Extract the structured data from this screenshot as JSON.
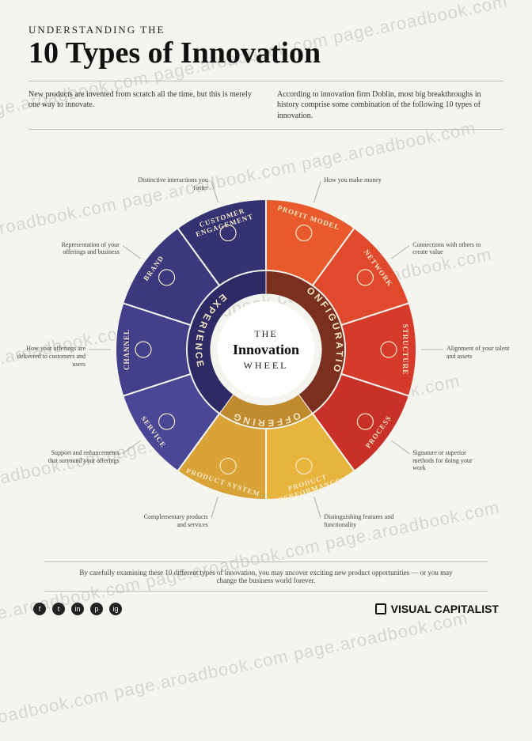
{
  "watermark_text": "page.aroadbook.com  page.aroadbook.com  page.aroadbook.com",
  "watermark_color": "rgba(120,120,120,0.25)",
  "header": {
    "eyebrow": "UNDERSTANDING THE",
    "title": "10 Types of Innovation",
    "intro_left": "New products are invented from scratch all the time, but this is merely one way to innovate.",
    "intro_right": "According to innovation firm Doblin, most big breakthroughs in history comprise some combination of the following 10 types of innovation."
  },
  "wheel": {
    "type": "radial-infographic",
    "center": {
      "line1": "THE",
      "line2": "Innovation",
      "line3": "WHEEL"
    },
    "background": "#f5f5f0",
    "inner_radius": 61,
    "ring_inner_radius": 70,
    "ring_outer_radius": 100,
    "segment_outer_radius": 190,
    "categories": [
      {
        "name": "CONFIGURATION",
        "color": "#7a2f1f",
        "start_deg": -90,
        "end_deg": 54
      },
      {
        "name": "OFFERING",
        "color": "#c08a2e",
        "start_deg": 54,
        "end_deg": 126
      },
      {
        "name": "EXPERIENCE",
        "color": "#2d2a66",
        "start_deg": 126,
        "end_deg": 270
      }
    ],
    "segments": [
      {
        "label": "PROFIT MODEL",
        "callout": "How you make money",
        "color": "#e85a2c",
        "start_deg": -90,
        "end_deg": -54
      },
      {
        "label": "NETWORK",
        "callout": "Connections with others to create value",
        "color": "#e0492b",
        "start_deg": -54,
        "end_deg": -18
      },
      {
        "label": "STRUCTURE",
        "callout": "Alignment of your talent and assets",
        "color": "#d63a2a",
        "start_deg": -18,
        "end_deg": 18
      },
      {
        "label": "PROCESS",
        "callout": "Signature or superior methods for doing your work",
        "color": "#c93028",
        "start_deg": 18,
        "end_deg": 54
      },
      {
        "label": "PRODUCT PERFORMANCE",
        "callout": "Distinguishing features and functionality",
        "color": "#e7b53e",
        "start_deg": 54,
        "end_deg": 90
      },
      {
        "label": "PRODUCT SYSTEM",
        "callout": "Complementary products and services",
        "color": "#d9a338",
        "start_deg": 90,
        "end_deg": 126
      },
      {
        "label": "SERVICE",
        "callout": "Support and enhancements that surround your offerings",
        "color": "#4a4796",
        "start_deg": 126,
        "end_deg": 162
      },
      {
        "label": "CHANNEL",
        "callout": "How your offerings are delivered to customers and users",
        "color": "#433f8a",
        "start_deg": 162,
        "end_deg": 198
      },
      {
        "label": "BRAND",
        "callout": "Representation of your offerings and business",
        "color": "#3b387d",
        "start_deg": 198,
        "end_deg": 234
      },
      {
        "label": "CUSTOMER ENGAGEMENT",
        "callout": "Distinctive interactions you foster",
        "color": "#353271",
        "start_deg": 234,
        "end_deg": 270
      }
    ],
    "segment_label_color": "#f5e9c8",
    "segment_divider_color": "#f5f5f0"
  },
  "footnote": "By carefully examining these 10 different types of innovation, you may uncover exciting new product opportunities — or you may change the business world forever.",
  "footer": {
    "brand": "VISUAL CAPITALIST",
    "social": [
      "f",
      "t",
      "in",
      "p",
      "ig"
    ]
  }
}
